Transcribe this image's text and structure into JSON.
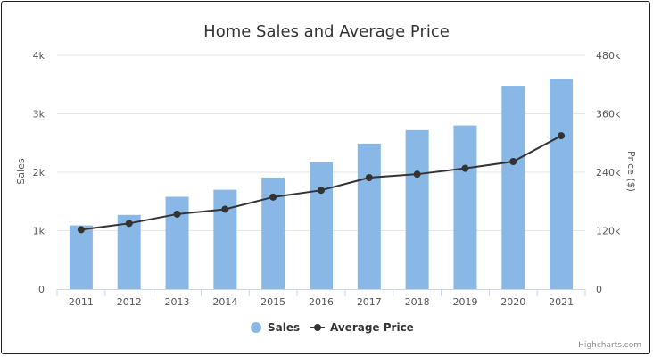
{
  "chart_data": {
    "type": "bar",
    "title": "Home Sales and Average Price",
    "categories": [
      "2011",
      "2012",
      "2013",
      "2014",
      "2015",
      "2016",
      "2017",
      "2018",
      "2019",
      "2020",
      "2021"
    ],
    "series": [
      {
        "name": "Sales",
        "type": "bar",
        "axis": "left",
        "color": "#8ab8e6",
        "values": [
          1090,
          1270,
          1580,
          1700,
          1910,
          2170,
          2490,
          2720,
          2800,
          3480,
          3600
        ]
      },
      {
        "name": "Average Price",
        "type": "line",
        "axis": "right",
        "color": "#333333",
        "values": [
          122000,
          135000,
          154000,
          164000,
          189000,
          203000,
          229000,
          236000,
          248000,
          262000,
          315000
        ]
      }
    ],
    "y_left": {
      "label": "Sales",
      "ylim": [
        0,
        4000
      ],
      "ticks": [
        "0",
        "1k",
        "2k",
        "3k",
        "4k"
      ]
    },
    "y_right": {
      "label": "Price ($)",
      "ylim": [
        0,
        480000
      ],
      "ticks": [
        "0",
        "120k",
        "240k",
        "360k",
        "480k"
      ]
    },
    "grid": true,
    "legend_position": "bottom-center",
    "credit": "Highcharts.com"
  }
}
